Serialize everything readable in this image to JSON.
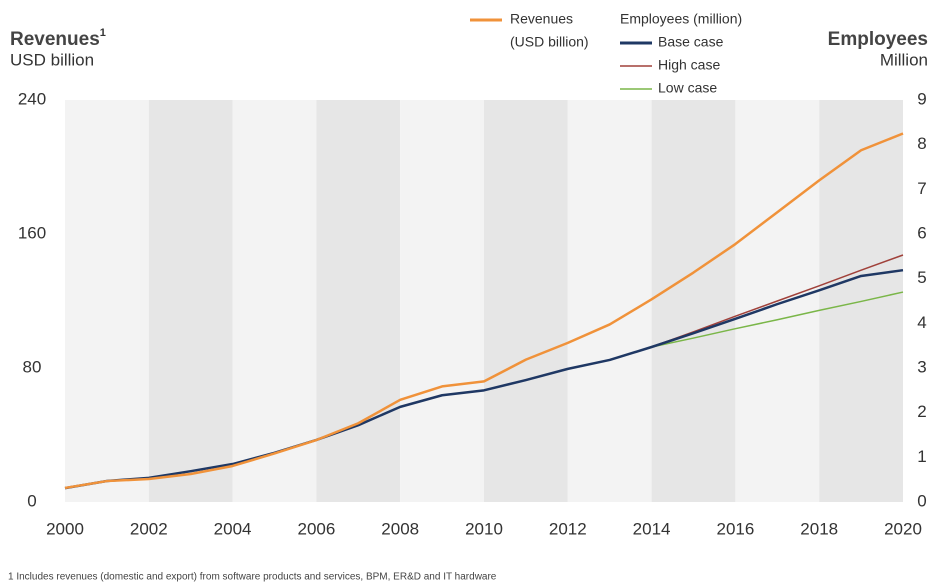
{
  "chart_data": {
    "type": "line",
    "y_label": "Revenues",
    "y_label_note": "1",
    "y_unit": "USD billion",
    "y2_label": "Employees",
    "y2_unit": "Million",
    "legend_revenue_unit": "(USD billion)",
    "legend_employees_title": "Employees (million)",
    "footnote": "1 Includes revenues (domestic and export) from software products and services, BPM, ER&D and IT hardware",
    "x": [
      2000,
      2001,
      2002,
      2003,
      2004,
      2005,
      2006,
      2007,
      2008,
      2009,
      2010,
      2011,
      2012,
      2013,
      2014,
      2015,
      2016,
      2017,
      2018,
      2019,
      2020
    ],
    "xlim": [
      2000,
      2020
    ],
    "xticks": [
      2000,
      2002,
      2004,
      2006,
      2008,
      2010,
      2012,
      2014,
      2016,
      2018,
      2020
    ],
    "ylim": [
      0,
      240
    ],
    "yticks": [
      0,
      80,
      160,
      240
    ],
    "y2lim": [
      0,
      9
    ],
    "y2ticks": [
      0,
      1,
      2,
      3,
      4,
      5,
      6,
      7,
      8,
      9
    ],
    "series": [
      {
        "name": "Revenues",
        "color": "#f0923a",
        "axis": "y",
        "values": [
          8.4,
          12.5,
          13.7,
          16.7,
          21.5,
          29,
          37,
          47,
          61,
          69,
          72,
          85,
          95,
          106,
          121,
          137,
          154,
          173,
          192,
          210,
          220
        ]
      },
      {
        "name": "Base case",
        "color": "#1f3864",
        "axis": "y2",
        "values": [
          0.31,
          0.47,
          0.54,
          0.69,
          0.85,
          1.1,
          1.39,
          1.72,
          2.13,
          2.39,
          2.5,
          2.73,
          2.98,
          3.18,
          3.47,
          3.78,
          4.1,
          4.43,
          4.74,
          5.06,
          5.19
        ]
      },
      {
        "name": "High case",
        "color": "#a0413a",
        "axis": "y2",
        "values": [
          null,
          null,
          null,
          null,
          null,
          null,
          null,
          null,
          null,
          null,
          null,
          null,
          null,
          null,
          3.47,
          3.81,
          4.16,
          4.5,
          4.84,
          5.19,
          5.53
        ]
      },
      {
        "name": "Low case",
        "color": "#7ab648",
        "axis": "y2",
        "values": [
          null,
          null,
          null,
          null,
          null,
          null,
          null,
          null,
          null,
          null,
          null,
          null,
          null,
          null,
          3.47,
          3.67,
          3.88,
          4.08,
          4.29,
          4.49,
          4.7
        ]
      }
    ]
  }
}
